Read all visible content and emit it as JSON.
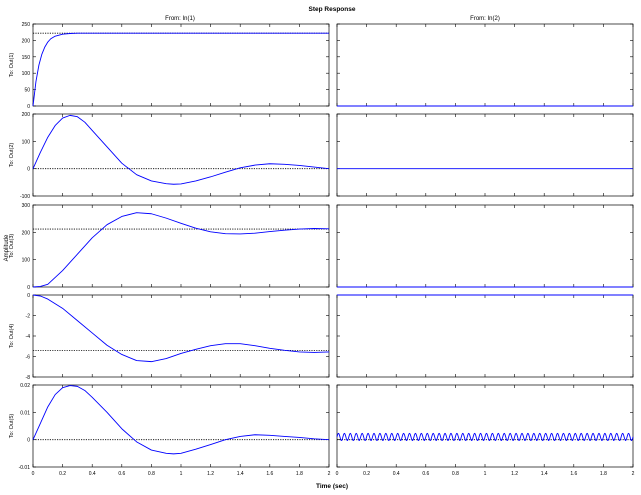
{
  "figure": {
    "title": "Step Response",
    "xlabel": "Time (sec)",
    "ylabel": "Amplitude",
    "column_titles": [
      "From: In(1)",
      "From: In(2)"
    ],
    "row_labels": [
      "To: Out(1)",
      "To: Out(2)",
      "To: Out(3)",
      "To: Out(4)",
      "To: Out(5)"
    ],
    "line_color": "#0000ff",
    "steady_state_line": "dotted black"
  },
  "chart_data": {
    "type": "line",
    "title": "Step Response",
    "xlabel": "Time (sec)",
    "ylabel": "Amplitude",
    "xlim": [
      0,
      2
    ],
    "xticks": [
      0,
      0.2,
      0.4,
      0.6,
      0.8,
      1,
      1.2,
      1.4,
      1.6,
      1.8,
      2
    ],
    "rows": [
      {
        "label": "To: Out(1)",
        "ylim": [
          0,
          250
        ],
        "yticks": [
          0,
          50,
          100,
          150,
          200,
          250
        ],
        "panels": [
          {
            "column": "From: In(1)",
            "steady_state": 222,
            "x": [
              0,
              0.02,
              0.04,
              0.06,
              0.08,
              0.1,
              0.12,
              0.15,
              0.2,
              0.25,
              0.3,
              0.4,
              0.6,
              1.0,
              1.5,
              2.0
            ],
            "y": [
              0,
              75,
              125,
              158,
              180,
              195,
              205,
              213,
              219,
              221,
              222,
              222,
              222,
              222,
              222,
              222
            ]
          },
          {
            "column": "From: In(2)",
            "x": [
              0,
              2
            ],
            "y": [
              0,
              0
            ]
          }
        ]
      },
      {
        "label": "To: Out(2)",
        "ylim": [
          -100,
          200
        ],
        "yticks": [
          -100,
          0,
          100,
          200
        ],
        "panels": [
          {
            "column": "From: In(1)",
            "steady_state": 0,
            "x": [
              0,
              0.05,
              0.1,
              0.15,
              0.2,
              0.25,
              0.3,
              0.35,
              0.4,
              0.5,
              0.6,
              0.7,
              0.8,
              0.9,
              0.95,
              1.0,
              1.1,
              1.2,
              1.3,
              1.4,
              1.5,
              1.6,
              1.7,
              1.8,
              1.9,
              2.0
            ],
            "y": [
              0,
              60,
              115,
              158,
              185,
              195,
              190,
              170,
              140,
              80,
              20,
              -22,
              -45,
              -55,
              -57,
              -56,
              -45,
              -30,
              -13,
              3,
              13,
              18,
              16,
              12,
              6,
              0
            ]
          },
          {
            "column": "From: In(2)",
            "x": [
              0,
              2
            ],
            "y": [
              0,
              0
            ]
          }
        ]
      },
      {
        "label": "To: Out(3)",
        "ylim": [
          0,
          300
        ],
        "yticks": [
          0,
          100,
          200,
          300
        ],
        "panels": [
          {
            "column": "From: In(1)",
            "steady_state": 212,
            "x": [
              0,
              0.05,
              0.1,
              0.2,
              0.3,
              0.4,
              0.5,
              0.6,
              0.7,
              0.8,
              0.9,
              1.0,
              1.1,
              1.2,
              1.3,
              1.4,
              1.5,
              1.6,
              1.7,
              1.8,
              1.9,
              2.0
            ],
            "y": [
              0,
              2,
              10,
              60,
              120,
              180,
              228,
              258,
              272,
              268,
              252,
              233,
              215,
              202,
              195,
              194,
              197,
              203,
              208,
              212,
              214,
              213
            ]
          },
          {
            "column": "From: In(2)",
            "x": [
              0,
              2
            ],
            "y": [
              0,
              0
            ]
          }
        ]
      },
      {
        "label": "To: Out(4)",
        "ylim": [
          -8,
          0
        ],
        "yticks": [
          -8,
          -6,
          -4,
          -2,
          0
        ],
        "panels": [
          {
            "column": "From: In(1)",
            "steady_state": -5.4,
            "x": [
              0,
              0.05,
              0.1,
              0.2,
              0.3,
              0.4,
              0.5,
              0.6,
              0.7,
              0.8,
              0.9,
              1.0,
              1.1,
              1.2,
              1.3,
              1.4,
              1.5,
              1.6,
              1.7,
              1.8,
              1.9,
              2.0
            ],
            "y": [
              0,
              -0.1,
              -0.4,
              -1.3,
              -2.5,
              -3.7,
              -4.9,
              -5.8,
              -6.4,
              -6.5,
              -6.2,
              -5.7,
              -5.3,
              -4.95,
              -4.75,
              -4.75,
              -4.95,
              -5.2,
              -5.4,
              -5.55,
              -5.6,
              -5.55
            ]
          },
          {
            "column": "From: In(2)",
            "x": [
              0,
              2
            ],
            "y": [
              0,
              0
            ]
          }
        ]
      },
      {
        "label": "To: Out(5)",
        "ylim": [
          -0.01,
          0.02
        ],
        "yticks": [
          -0.01,
          0,
          0.01,
          0.02
        ],
        "panels": [
          {
            "column": "From: In(1)",
            "steady_state": 0,
            "x": [
              0,
              0.05,
              0.1,
              0.15,
              0.2,
              0.25,
              0.3,
              0.35,
              0.4,
              0.5,
              0.6,
              0.7,
              0.8,
              0.9,
              0.95,
              1.0,
              1.1,
              1.2,
              1.3,
              1.4,
              1.5,
              1.6,
              1.7,
              1.8,
              1.9,
              2.0
            ],
            "y": [
              0,
              0.006,
              0.012,
              0.0165,
              0.019,
              0.0198,
              0.0195,
              0.018,
              0.0155,
              0.01,
              0.004,
              -0.0008,
              -0.0038,
              -0.005,
              -0.0052,
              -0.005,
              -0.0035,
              -0.0018,
              0,
              0.0012,
              0.0018,
              0.0016,
              0.0012,
              0.0008,
              0.0003,
              0
            ]
          },
          {
            "column": "From: In(2)",
            "steady_state": 0,
            "oscillation": {
              "center": 0.001,
              "amplitude": 0.0013,
              "cycles": 50
            }
          }
        ]
      }
    ]
  }
}
